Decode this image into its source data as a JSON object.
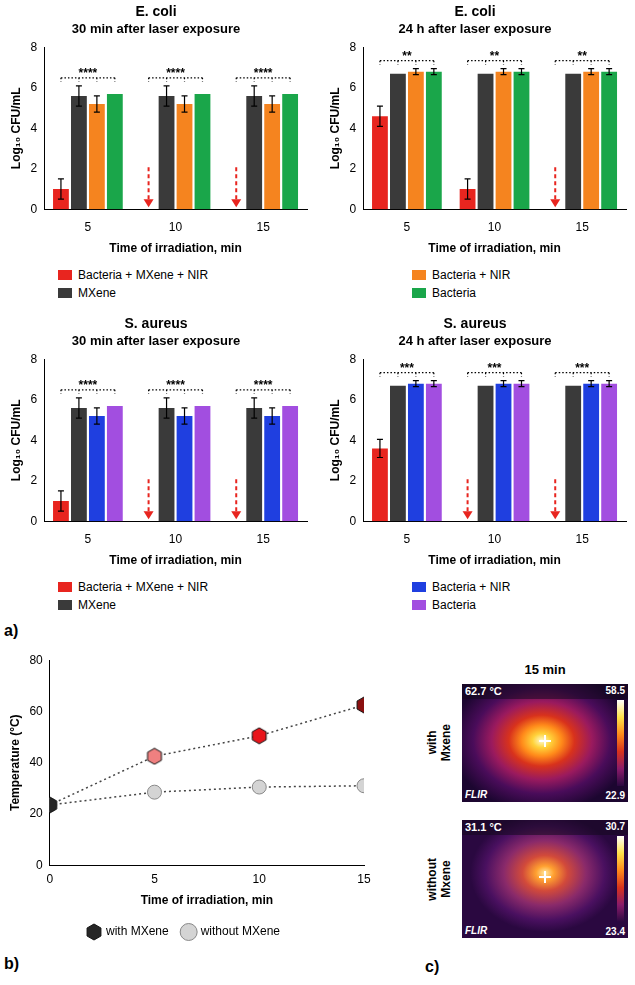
{
  "panel_labels": [
    "a)",
    "b)",
    "c)"
  ],
  "chart_data": [
    {
      "type": "bar",
      "title": "E. coli",
      "subtitle": "30 min after laser exposure",
      "x_label": "Time of irradiation, min",
      "y_label": "Log₁₀ CFU/mL",
      "categories": [
        "5",
        "10",
        "15"
      ],
      "ylim": [
        0,
        8
      ],
      "yticks": [
        0,
        2,
        4,
        6,
        8
      ],
      "grid": false,
      "legend": "bottom",
      "series": [
        {
          "name": "Bacteria + MXene + NIR",
          "color": "#e8251f",
          "marker": "arrow",
          "values": [
            1.0,
            0,
            0
          ],
          "errors": [
            0.5,
            0,
            0
          ]
        },
        {
          "name": "MXene",
          "color": "#3a3a3a",
          "values": [
            5.6,
            5.6,
            5.6
          ],
          "errors": [
            0.5,
            0.5,
            0.5
          ]
        },
        {
          "name": "Bacteria + NIR",
          "color": "#f5841f",
          "values": [
            5.2,
            5.2,
            5.2
          ],
          "errors": [
            0.4,
            0.4,
            0.4
          ]
        },
        {
          "name": "Bacteria",
          "color": "#1aa64a",
          "values": [
            5.7,
            5.7,
            5.7
          ],
          "errors": [
            0,
            0,
            0
          ]
        }
      ],
      "annotations": [
        "****",
        "****",
        "****"
      ]
    },
    {
      "type": "bar",
      "title": "E. coli",
      "subtitle": "24 h after laser exposure",
      "x_label": "Time of irradiation, min",
      "y_label": "Log₁₀ CFU/mL",
      "categories": [
        "5",
        "10",
        "15"
      ],
      "ylim": [
        0,
        8
      ],
      "yticks": [
        0,
        2,
        4,
        6,
        8
      ],
      "grid": false,
      "legend": "bottom",
      "series": [
        {
          "name": "Bacteria + MXene + NIR",
          "color": "#e8251f",
          "marker": "arrow",
          "values": [
            4.6,
            1.0,
            0
          ],
          "errors": [
            0.5,
            0.5,
            0
          ]
        },
        {
          "name": "MXene",
          "color": "#3a3a3a",
          "values": [
            6.7,
            6.7,
            6.7
          ],
          "errors": [
            0,
            0,
            0
          ]
        },
        {
          "name": "Bacteria + NIR",
          "color": "#f5841f",
          "values": [
            6.8,
            6.8,
            6.8
          ],
          "errors": [
            0.15,
            0.15,
            0.15
          ]
        },
        {
          "name": "Bacteria",
          "color": "#1aa64a",
          "values": [
            6.8,
            6.8,
            6.8
          ],
          "errors": [
            0.15,
            0.15,
            0.15
          ]
        }
      ],
      "annotations": [
        "**",
        "**",
        "**"
      ]
    },
    {
      "type": "bar",
      "title": "S. aureus",
      "subtitle": "30 min after laser exposure",
      "x_label": "Time of irradiation, min",
      "y_label": "Log₁₀ CFU/mL",
      "categories": [
        "5",
        "10",
        "15"
      ],
      "ylim": [
        0,
        8
      ],
      "yticks": [
        0,
        2,
        4,
        6,
        8
      ],
      "grid": false,
      "legend": "bottom",
      "series": [
        {
          "name": "Bacteria + MXene + NIR",
          "color": "#e8251f",
          "marker": "arrow",
          "values": [
            1.0,
            0,
            0
          ],
          "errors": [
            0.5,
            0,
            0
          ]
        },
        {
          "name": "MXene",
          "color": "#3a3a3a",
          "values": [
            5.6,
            5.6,
            5.6
          ],
          "errors": [
            0.5,
            0.5,
            0.5
          ]
        },
        {
          "name": "Bacteria + NIR",
          "color": "#1f3fe0",
          "values": [
            5.2,
            5.2,
            5.2
          ],
          "errors": [
            0.4,
            0.4,
            0.4
          ]
        },
        {
          "name": "Bacteria",
          "color": "#a24ee0",
          "values": [
            5.7,
            5.7,
            5.7
          ],
          "errors": [
            0,
            0,
            0
          ]
        }
      ],
      "annotations": [
        "****",
        "****",
        "****"
      ]
    },
    {
      "type": "bar",
      "title": "S. aureus",
      "subtitle": "24 h after laser exposure",
      "x_label": "Time of irradiation, min",
      "y_label": "Log₁₀ CFU/mL",
      "categories": [
        "5",
        "10",
        "15"
      ],
      "ylim": [
        0,
        8
      ],
      "yticks": [
        0,
        2,
        4,
        6,
        8
      ],
      "grid": false,
      "legend": "bottom",
      "series": [
        {
          "name": "Bacteria + MXene + NIR",
          "color": "#e8251f",
          "marker": "arrow",
          "values": [
            3.6,
            0,
            0
          ],
          "errors": [
            0.45,
            0,
            0
          ]
        },
        {
          "name": "MXene",
          "color": "#3a3a3a",
          "values": [
            6.7,
            6.7,
            6.7
          ],
          "errors": [
            0,
            0,
            0
          ]
        },
        {
          "name": "Bacteria + NIR",
          "color": "#1f3fe0",
          "values": [
            6.8,
            6.8,
            6.8
          ],
          "errors": [
            0.15,
            0.15,
            0.15
          ]
        },
        {
          "name": "Bacteria",
          "color": "#a24ee0",
          "values": [
            6.8,
            6.8,
            6.8
          ],
          "errors": [
            0.15,
            0.15,
            0.15
          ]
        }
      ],
      "annotations": [
        "***",
        "***",
        "***"
      ]
    },
    {
      "type": "line",
      "x_label": "Time of irradiation, min",
      "y_label": "Temperature (°C)",
      "x": [
        0,
        5,
        10,
        15
      ],
      "xlim": [
        0,
        15
      ],
      "xticks": [
        0,
        5,
        10,
        15
      ],
      "ylim": [
        0,
        80
      ],
      "yticks": [
        0,
        20,
        40,
        60,
        80
      ],
      "grid": false,
      "legend": "bottom",
      "series": [
        {
          "name": "with MXene",
          "color": "#262626",
          "colors": [
            "#262626",
            "#f08080",
            "#e8151b",
            "#8b0f0f"
          ],
          "marker": "hexagon",
          "line_style": "dotted",
          "values": [
            23.5,
            42.5,
            50.5,
            62.5
          ]
        },
        {
          "name": "without MXene",
          "color": "#d4d4d4",
          "marker": "circle",
          "line_style": "dotted",
          "values": [
            23.5,
            28.5,
            30.5,
            31
          ]
        }
      ]
    }
  ],
  "thermal": {
    "title": "15 min",
    "items": [
      {
        "label": "with Mxene",
        "spot": "62.7 °C",
        "scale_max": "58.5",
        "scale_min": "22.9",
        "brand": "FLIR"
      },
      {
        "label": "without Mxene",
        "spot": "31.1 °C",
        "scale_max": "30.7",
        "scale_min": "23.4",
        "brand": "FLIR"
      }
    ]
  }
}
